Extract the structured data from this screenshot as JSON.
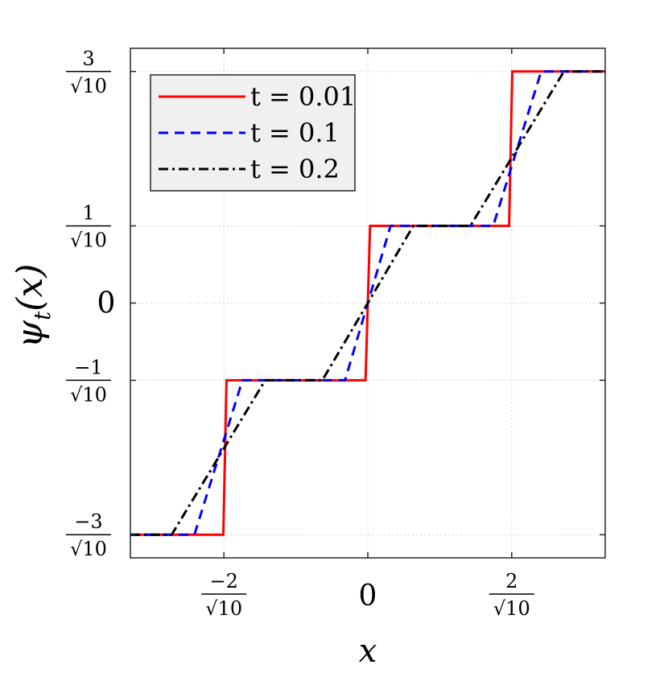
{
  "chart_data": {
    "type": "line",
    "xlabel": "x",
    "ylabel": "ψ",
    "ylabel_sub": "t",
    "ylabel_arg": "(x)",
    "xlim": [
      -1.0435,
      1.0435
    ],
    "ylim": [
      -1.0435,
      1.0435
    ],
    "grid": true,
    "legend_position": "top-left",
    "x_ticks": [
      {
        "value": -0.632456,
        "num": "−2",
        "den": "√10"
      },
      {
        "value": 0,
        "text": "0"
      },
      {
        "value": 0.632456,
        "num": "2",
        "den": "√10"
      }
    ],
    "y_ticks": [
      {
        "value": -0.948683,
        "num": "−3",
        "den": "√10"
      },
      {
        "value": -0.316228,
        "num": "−1",
        "den": "√10"
      },
      {
        "value": 0,
        "text": "0"
      },
      {
        "value": 0.316228,
        "num": "1",
        "den": "√10"
      },
      {
        "value": 0.948683,
        "num": "3",
        "den": "√10"
      }
    ],
    "series": [
      {
        "name": "t = 0.01",
        "color": "#ff0000",
        "dash": "solid",
        "x": [
          -1.0435,
          -0.635,
          -0.621,
          -0.01,
          0.01,
          0.621,
          0.635,
          1.0435
        ],
        "y": [
          -0.948683,
          -0.948683,
          -0.316228,
          -0.316228,
          0.316228,
          0.316228,
          0.948683,
          0.948683
        ]
      },
      {
        "name": "t = 0.1",
        "color": "#0000ff",
        "dash": "dashed",
        "x": [
          -1.0435,
          -0.762,
          -0.551,
          -0.1,
          0.1,
          0.551,
          0.762,
          1.0435
        ],
        "y": [
          -0.948683,
          -0.948683,
          -0.316228,
          -0.316228,
          0.316228,
          0.316228,
          0.948683,
          0.948683
        ]
      },
      {
        "name": "t = 0.2",
        "color": "#000000",
        "dash": "dashdot",
        "x": [
          -1.0435,
          -0.862,
          -0.451,
          -0.2,
          0.2,
          0.451,
          0.862,
          1.0435
        ],
        "y": [
          -0.948683,
          -0.948683,
          -0.316228,
          -0.316228,
          0.316228,
          0.316228,
          0.948683,
          0.948683
        ]
      }
    ]
  }
}
